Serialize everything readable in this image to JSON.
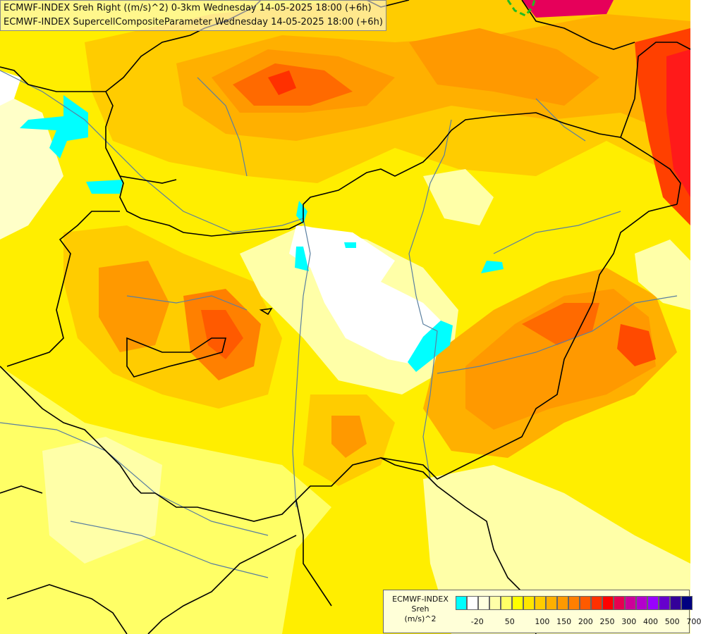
{
  "titles": {
    "line1": "ECMWF-INDEX Sreh Right ((m/s)^2) 0-3km Wednesday 14-05-2025 18:00 (+6h)",
    "line2": "ECMWF-INDEX SupercellCompositeParameter Wednesday 14-05-2025 18:00 (+6h)"
  },
  "legend": {
    "title1": "ECMWF-INDEX",
    "title2": "Sreh",
    "title3": "(m/s)^2",
    "labels": [
      "-20",
      "50",
      "100",
      "150",
      "200",
      "250",
      "300",
      "400",
      "500",
      "700"
    ],
    "colors": [
      "#00ffff",
      "#ffffff",
      "#ffffe0",
      "#ffffa8",
      "#ffff66",
      "#ffff00",
      "#ffe600",
      "#ffcc00",
      "#ffb000",
      "#ff9900",
      "#ff7f00",
      "#ff5a00",
      "#ff3000",
      "#ff0000",
      "#e60050",
      "#cc0099",
      "#b300cc",
      "#9900ff",
      "#6600cc",
      "#330099",
      "#000080"
    ]
  },
  "colors": {
    "base": "#ffe600",
    "border": "#000000",
    "river": "#5a7fa0"
  }
}
